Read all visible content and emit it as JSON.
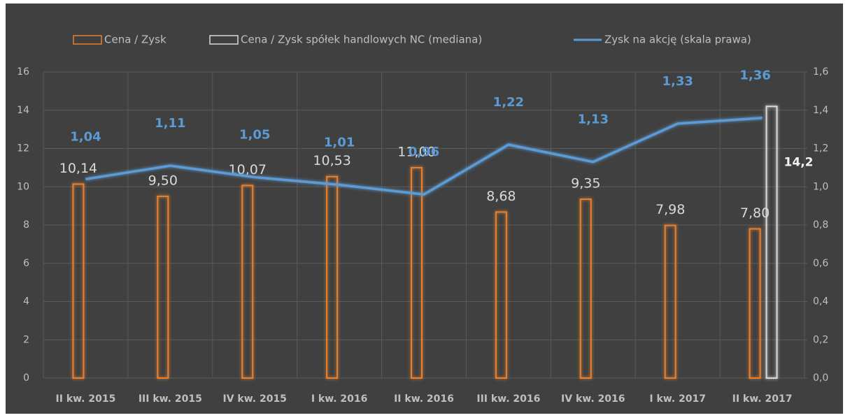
{
  "chart_data": {
    "type": "bar-line",
    "categories": [
      "II kw. 2015",
      "III kw. 2015",
      "IV kw. 2015",
      "I kw. 2016",
      "II kw. 2016",
      "III kw. 2016",
      "IV kw. 2016",
      "I kw. 2017",
      "II kw. 2017"
    ],
    "series": [
      {
        "name": "Cena / Zysk",
        "type": "bar",
        "color": "#e8802e",
        "values": [
          10.14,
          9.5,
          10.07,
          10.53,
          11.0,
          8.68,
          9.35,
          7.98,
          7.8
        ],
        "value_labels": [
          "10,14",
          "9,50",
          "10,07",
          "10,53",
          "11,00",
          "8,68",
          "9,35",
          "7,98",
          "7,80"
        ]
      },
      {
        "name": "Cena / Zysk spółek handlowych NC (mediana)",
        "type": "bar",
        "color": "#d9d9d9",
        "values": [
          null,
          null,
          null,
          null,
          null,
          null,
          null,
          null,
          14.2
        ],
        "value_labels": [
          null,
          null,
          null,
          null,
          null,
          null,
          null,
          null,
          "14,2"
        ]
      },
      {
        "name": "Zysk na akcję (skala prawa)",
        "type": "line",
        "axis": "y2",
        "color": "#5b9bd5",
        "values": [
          1.04,
          1.11,
          1.05,
          1.01,
          0.96,
          1.22,
          1.13,
          1.33,
          1.36
        ],
        "value_labels": [
          "1,04",
          "1,11",
          "1,05",
          "1,01",
          "0,96",
          "1,22",
          "1,13",
          "1,33",
          "1,36"
        ]
      }
    ],
    "ylim": [
      0,
      16
    ],
    "yticks": [
      0,
      2,
      4,
      6,
      8,
      10,
      12,
      14,
      16
    ],
    "y2lim": [
      0,
      1.6
    ],
    "y2ticks": [
      {
        "value": 0,
        "label": "0,0"
      },
      {
        "value": 0.2,
        "label": "0,2"
      },
      {
        "value": 0.4,
        "label": "0,4"
      },
      {
        "value": 0.6,
        "label": "0,6"
      },
      {
        "value": 0.8,
        "label": "0,8"
      },
      {
        "value": 1.0,
        "label": "1,0"
      },
      {
        "value": 1.2,
        "label": "1,2"
      },
      {
        "value": 1.4,
        "label": "1,4"
      },
      {
        "value": 1.6,
        "label": "1,6"
      }
    ],
    "grid": true,
    "legend": "top"
  }
}
